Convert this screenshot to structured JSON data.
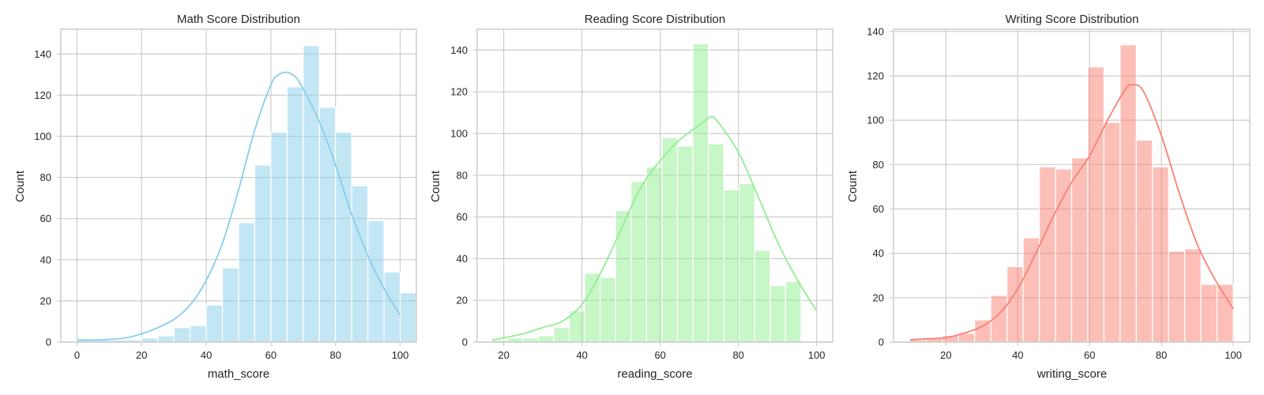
{
  "chart_data": [
    {
      "type": "bar",
      "subtype": "histogram",
      "title": "Math Score Distribution",
      "xlabel": "math_score",
      "ylabel": "Count",
      "xlim": [
        -5,
        105
      ],
      "ylim": [
        0,
        152
      ],
      "xticks": [
        0,
        20,
        40,
        60,
        80,
        100
      ],
      "yticks": [
        0,
        20,
        40,
        60,
        80,
        100,
        120,
        140
      ],
      "grid": true,
      "color": "#87ceeb",
      "bin_start": 0,
      "bin_width": 5,
      "values": [
        1,
        1,
        1,
        1,
        2,
        3,
        7,
        8,
        18,
        36,
        58,
        86,
        102,
        124,
        144,
        114,
        102,
        76,
        59,
        34,
        24
      ],
      "kde_x": [
        0,
        5,
        10,
        15,
        20,
        25,
        30,
        35,
        40,
        45,
        50,
        55,
        60,
        62.5,
        65,
        67.5,
        70,
        75,
        80,
        85,
        90,
        95,
        100
      ],
      "kde_y": [
        1,
        1,
        1.3,
        2,
        4,
        7,
        11,
        18,
        30,
        48,
        74,
        103,
        125,
        130,
        131,
        129,
        123,
        107,
        86,
        62,
        42,
        26,
        13
      ]
    },
    {
      "type": "bar",
      "subtype": "histogram",
      "title": "Reading Score Distribution",
      "xlabel": "reading_score",
      "ylabel": "Count",
      "xlim": [
        13.2,
        104.1
      ],
      "ylim": [
        0,
        150
      ],
      "xticks": [
        20,
        40,
        60,
        80,
        100
      ],
      "yticks": [
        0,
        20,
        40,
        60,
        80,
        100,
        120,
        140
      ],
      "grid": true,
      "color": "#90ee90",
      "bin_start": 17,
      "bin_width": 3.95,
      "values": [
        1,
        2,
        2,
        3,
        7,
        15,
        33,
        31,
        63,
        77,
        84,
        98,
        94,
        143,
        95,
        73,
        76,
        44,
        27,
        29
      ],
      "kde_x": [
        17,
        20,
        25,
        30,
        35,
        40,
        45,
        50,
        55,
        60,
        65,
        70,
        73,
        75,
        80,
        85,
        90,
        95,
        100
      ],
      "kde_y": [
        1,
        2,
        4,
        7,
        10,
        18,
        34,
        54,
        74,
        87,
        97,
        104,
        108,
        105,
        91,
        70,
        48,
        30,
        15
      ]
    },
    {
      "type": "bar",
      "subtype": "histogram",
      "title": "Writing Score Distribution",
      "xlabel": "writing_score",
      "ylabel": "Count",
      "xlim": [
        5.4,
        104.6
      ],
      "ylim": [
        0,
        141
      ],
      "xticks": [
        20,
        40,
        60,
        80,
        100
      ],
      "yticks": [
        0,
        20,
        40,
        60,
        80,
        100,
        120,
        140
      ],
      "grid": true,
      "color": "#fa8072",
      "bin_start": 10,
      "bin_width": 4.5,
      "values": [
        1,
        2,
        3,
        4,
        10,
        21,
        34,
        47,
        79,
        78,
        83,
        124,
        99,
        134,
        91,
        79,
        41,
        42,
        26,
        26
      ],
      "kde_x": [
        10,
        15,
        20,
        25,
        30,
        35,
        40,
        45,
        50,
        55,
        60,
        65,
        70,
        72,
        75,
        80,
        85,
        90,
        95,
        100
      ],
      "kde_y": [
        1,
        1.5,
        2,
        4,
        7,
        13,
        24,
        40,
        57,
        72,
        84,
        100,
        114,
        116,
        113,
        93,
        67,
        44,
        28,
        15
      ]
    }
  ]
}
